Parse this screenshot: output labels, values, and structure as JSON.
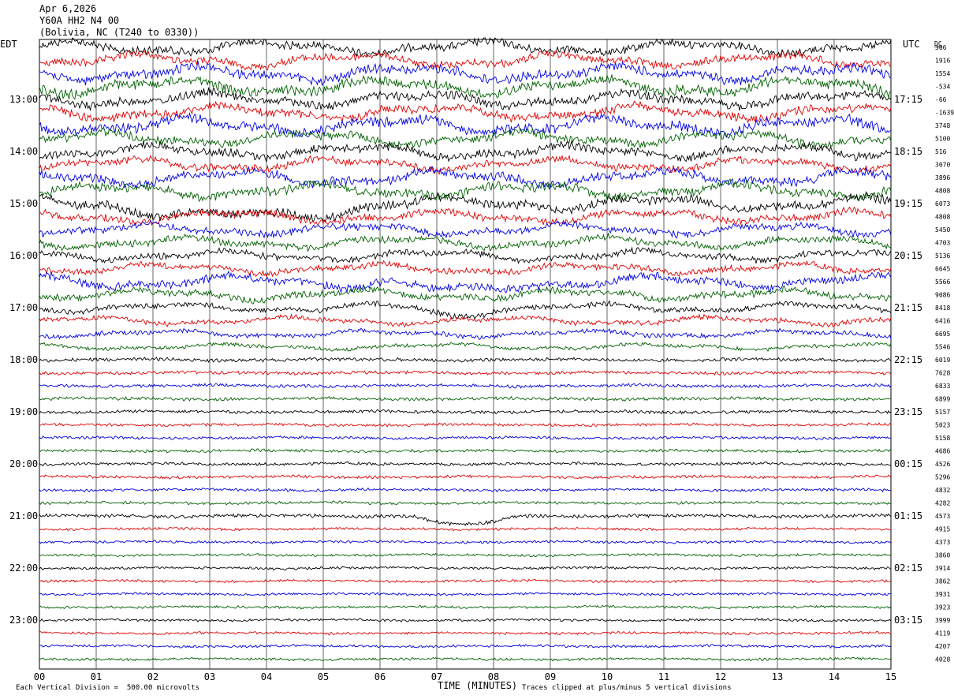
{
  "header": {
    "date": "Apr 6,2026",
    "station": "Y60A HH2 N4 00",
    "location": "(Bolivia, NC (T240 to 0330))"
  },
  "footer": {
    "scale_note": "Each Vertical Division =  500.00 microvolts",
    "clip_note": "Traces clipped at plus/minus 5 vertical divisions"
  },
  "chart_data": {
    "type": "line",
    "title": "",
    "xlabel": "TIME (MINUTES)",
    "xlim": [
      0,
      15
    ],
    "x_ticks": [
      "00",
      "01",
      "02",
      "03",
      "04",
      "05",
      "06",
      "07",
      "08",
      "09",
      "10",
      "11",
      "12",
      "13",
      "14",
      "15"
    ],
    "left_axis_label": "EDT",
    "right_axis_label": "UTC",
    "dc_label": "DC",
    "grid": "vertical lines each minute",
    "trace_colors": [
      "#000000",
      "#e00000",
      "#0000e0",
      "#006000"
    ],
    "left_hour_labels": [
      "13:00",
      "14:00",
      "15:00",
      "16:00",
      "17:00",
      "18:00",
      "19:00",
      "20:00",
      "21:00",
      "22:00",
      "23:00"
    ],
    "right_hour_labels": [
      "17:15",
      "18:15",
      "19:15",
      "20:15",
      "21:15",
      "22:15",
      "23:15",
      "00:15",
      "01:15",
      "02:15",
      "03:15"
    ],
    "dc_offsets": [
      "306",
      "1916",
      "1554",
      "-534",
      "-66",
      "-1639",
      "3748",
      "5100",
      "516",
      "3070",
      "3896",
      "4808",
      "6073",
      "4808",
      "5450",
      "4703",
      "5136",
      "6645",
      "5566",
      "9086",
      "8418",
      "6416",
      "6695",
      "5546",
      "6019",
      "7628",
      "6833",
      "6899",
      "5157",
      "5023",
      "5158",
      "4686",
      "4526",
      "5296",
      "4832",
      "4282",
      "4573",
      "4915",
      "4373",
      "3860",
      "3914",
      "3862",
      "3931",
      "3923",
      "3999",
      "4119",
      "4207",
      "4028"
    ],
    "trace_amplitude_divisions": [
      1.3,
      1.3,
      1.5,
      1.6,
      1.4,
      1.4,
      1.6,
      1.3,
      1.3,
      1.2,
      1.5,
      1.4,
      1.4,
      1.2,
      1.1,
      1.1,
      1.0,
      1.0,
      1.3,
      1.1,
      0.9,
      0.8,
      0.7,
      0.6,
      0.55,
      0.5,
      0.5,
      0.5,
      0.5,
      0.45,
      0.45,
      0.45,
      0.45,
      0.45,
      0.45,
      0.45,
      0.55,
      0.4,
      0.4,
      0.4,
      0.4,
      0.4,
      0.4,
      0.4,
      0.4,
      0.4,
      0.4,
      0.4
    ],
    "events": [
      {
        "trace_index": 12,
        "start_min": 1.2,
        "end_min": 6.0,
        "depth_divisions": 1.8
      },
      {
        "trace_index": 18,
        "start_min": 6.2,
        "end_min": 8.6,
        "depth_divisions": 1.4
      },
      {
        "trace_index": 20,
        "start_min": 6.6,
        "end_min": 8.0,
        "depth_divisions": 1.0
      },
      {
        "trace_index": 36,
        "start_min": 6.6,
        "end_min": 8.4,
        "depth_divisions": 1.2
      }
    ]
  }
}
